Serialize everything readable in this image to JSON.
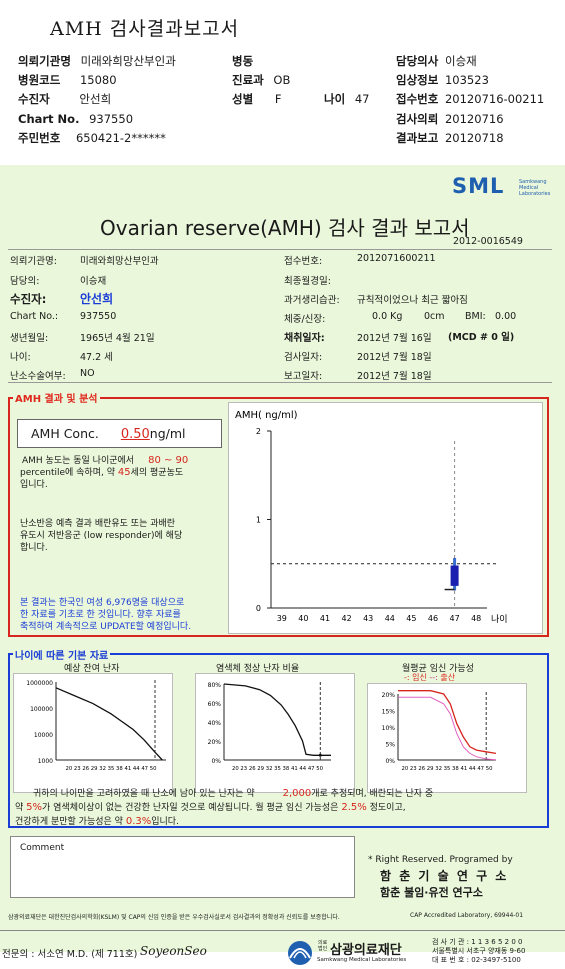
{
  "header": {
    "title": "AMH 검사결과보고서",
    "fields": [
      {
        "label": "의뢰기관명",
        "value": "미래와희망산부인과"
      },
      {
        "label": "병동",
        "value": ""
      },
      {
        "label": "담당의사",
        "value": "이승재"
      },
      {
        "label": "병원코드",
        "value": "15080"
      },
      {
        "label": "진료과",
        "value": "OB"
      },
      {
        "label": "임상정보",
        "value": "103523"
      },
      {
        "label": "수진자",
        "value": "안선희"
      },
      {
        "label": "성별",
        "value": "F"
      },
      {
        "label": "나이",
        "value": "47"
      },
      {
        "label": "접수번호",
        "value": "20120716-00211"
      },
      {
        "label": "Chart No.",
        "value": "937550"
      },
      {
        "label": "검사의뢰",
        "value": "20120716"
      },
      {
        "label": "주민번호",
        "value": "650421-2******"
      },
      {
        "label": "결과보고",
        "value": "20120718"
      }
    ]
  },
  "report": {
    "logo": {
      "brand": "SML",
      "sub": [
        "Samkwang",
        "Medical",
        "Laboratories"
      ]
    },
    "title": "Ovarian reserve(AMH) 검사 결과 보고서",
    "number": "2012-0016549",
    "left_info": [
      {
        "label": "의뢰기관명:",
        "value": "미래와희망산부인과"
      },
      {
        "label": "담당의:",
        "value": "이승재"
      },
      {
        "label": "수진자:",
        "value": "안선희"
      },
      {
        "label": "Chart No.:",
        "value": "937550"
      },
      {
        "label": "생년월일:",
        "value": "1965년 4월 21일"
      },
      {
        "label": "나이:",
        "value": "47.2 세"
      },
      {
        "label": "난소수술여부:",
        "value": "NO"
      }
    ],
    "right_info": {
      "receipt_label": "접수번호:",
      "receipt_value": "2012071600211",
      "lmp_label": "최종월경일:",
      "lmp_value": "",
      "history_label": "과거생리습관:",
      "history_value": "규칙적이었으나 최근 짧아짐",
      "body_label": "체중/신장:",
      "weight": "0.0 Kg",
      "height": "0cm",
      "bmi_label": "BMI:",
      "bmi_value": "0.00",
      "collect_label": "채취일자:",
      "collect_value": "2012년 7월 16일",
      "mcd": "(MCD # 0 일)",
      "test_label": "검사일자:",
      "test_value": "2012년 7월 18일",
      "report_label": "보고일자:",
      "report_value": "2012년 7월 18일"
    },
    "amh_section": {
      "label": "AMH 결과 및 분석",
      "conc_label": "AMH Conc.",
      "conc_value": "0.50",
      "conc_unit": "ng/ml",
      "p1_a": "AMH 농도는 동일 나이군에서",
      "p1_range": "80 ~ 90",
      "p1_b": "percentile에 속하며, 약",
      "p1_age": "45",
      "p1_c": "세의 평균농도",
      "p1_d": "입니다.",
      "p2_a": "난소반응 예측 결과 배란유도 또는 과배란",
      "p2_b": "유도시 저반응군 (low responder)에 해당",
      "p2_c": "합니다.",
      "p3_a": "본 결과는 한국인 여성 6,976명을 대상으로",
      "p3_b": "한 자료를 기초로 한 것입니다. 향후 자료를",
      "p3_c": "축적하여 계속적으로 UPDATE할 예정입니다."
    },
    "age_section": {
      "label": "나이에 따른 기본 자료",
      "chart1_title": "예상 잔여 난자",
      "chart2_title": "염색체 정상 난자 비율",
      "chart3_title": "월평균 임신 가능성",
      "chart3_legend_a": "-: 임신",
      "chart3_legend_sep": "--: ",
      "chart3_legend_b": "출산",
      "t1_a": "귀하의 나이만을 고려하였을 때 난소에 남아 있는 난자는 약",
      "t1_num": "2,000",
      "t1_b": "개로 추정되며, 배란되는 난자 중",
      "t2_a": "약",
      "t2_pct": "5%",
      "t2_b": "가 염색체이상이 없는 건강한 난자일 것으로 예상됩니다. 월 평균 임신 가능성은",
      "t2_pct2": "2.5%",
      "t2_c": "정도이고,",
      "t3_a": "건강하게 분만할 가능성은 약",
      "t3_pct": "0.3%",
      "t3_b": "입니다."
    },
    "comment_label": "Comment",
    "rights": "* Right Reserved. Programed by",
    "inst1": "함 춘 기 술 연 구 소",
    "inst2": "함춘 불임·유전 연구소",
    "footnote": "삼광의료재단은 대한진단검사의학회(KSLM) 및 CAP의 신임 인증을 받은 우수검사실로서 검사결과의 정확성과 신뢰도를 보증합니다.",
    "cap": "CAP  Accredited  Laboratory,  69944-01",
    "doctor": "전문의 : 서소연 M.D. (제 711호)",
    "signature": "SoyeonSeo",
    "foundation": {
      "small": "의료법인",
      "name": "삼광의료재단",
      "en": "Samkwang Medical Laboratories",
      "info1": "검 사 기 관 : 1 1 3 6 5 2 0 0",
      "info2": "서울특별시 서초구 양재동 9-60",
      "info3": "대 표 번 호 : 02-3497-5100"
    }
  },
  "chart_data": [
    {
      "type": "scatter",
      "ylabel": "AMH( ng/ml)",
      "xlabel": "나이",
      "x_ticks": [
        39,
        40,
        41,
        42,
        43,
        44,
        45,
        46,
        47,
        48
      ],
      "y_ticks": [
        0,
        1,
        2
      ],
      "ylim": [
        0,
        2
      ],
      "reference_line": {
        "y": 0.5
      },
      "marker": {
        "x": 47,
        "y_low": 0.22,
        "y_high": 0.52,
        "bar_low": 0.25,
        "bar_high": 0.48
      }
    },
    {
      "type": "line",
      "title": "예상 잔여 난자",
      "y_ticks": [
        "1000000",
        "100000",
        "10000",
        "1000"
      ],
      "x_ticks": [
        20,
        23,
        26,
        29,
        32,
        35,
        38,
        41,
        44,
        47,
        50
      ],
      "y_scale": "log",
      "marker_x": 47,
      "x": [
        20,
        25,
        30,
        35,
        38,
        41,
        44,
        47,
        49
      ],
      "y": [
        600000,
        300000,
        150000,
        60000,
        30000,
        15000,
        6000,
        2000,
        1000
      ]
    },
    {
      "type": "line",
      "title": "염색체 정상 난자 비율",
      "y_ticks": [
        "80%",
        "60%",
        "40%",
        "20%",
        "0%"
      ],
      "x_ticks": [
        20,
        23,
        26,
        29,
        32,
        35,
        38,
        41,
        44,
        47,
        50
      ],
      "marker_x": 47,
      "x": [
        20,
        26,
        30,
        33,
        36,
        38,
        40,
        42,
        43,
        45,
        47,
        50
      ],
      "y": [
        80,
        78,
        74,
        68,
        58,
        48,
        36,
        20,
        6,
        5,
        5,
        5
      ]
    },
    {
      "type": "line",
      "title": "월평균 임신 가능성",
      "y_ticks": [
        "20%",
        "15%",
        "10%",
        "5%",
        "0%"
      ],
      "x_ticks": [
        20,
        23,
        26,
        29,
        32,
        35,
        38,
        41,
        44,
        47,
        50
      ],
      "marker_x": 47,
      "series": [
        {
          "name": "임신",
          "x": [
            20,
            30,
            34,
            36,
            38,
            40,
            42,
            44,
            47,
            50
          ],
          "y": [
            21,
            21,
            20,
            17,
            11,
            7,
            4,
            3,
            2.5,
            2
          ]
        },
        {
          "name": "출산",
          "x": [
            20,
            30,
            34,
            36,
            38,
            40,
            42,
            44,
            47,
            50
          ],
          "y": [
            19,
            19,
            17,
            14,
            8,
            4,
            2,
            1,
            0.3,
            0.1
          ]
        }
      ]
    }
  ]
}
